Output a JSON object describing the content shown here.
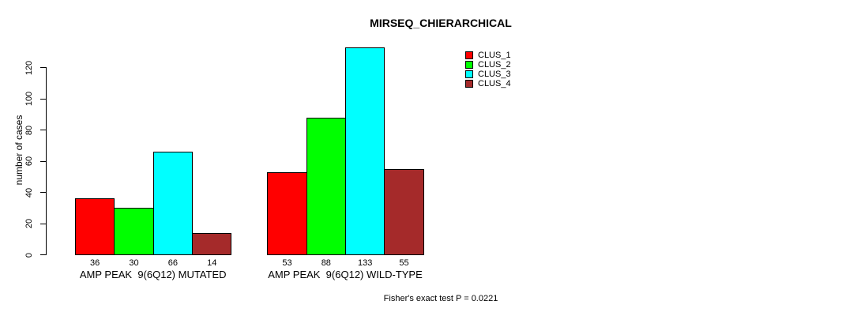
{
  "chart_data": {
    "type": "bar",
    "title": "MIRSEQ_CHIERARCHICAL",
    "ylabel": "number of cases",
    "xlabel": "",
    "categories": [
      "AMP PEAK  9(6Q12) MUTATED",
      "AMP PEAK  9(6Q12) WILD-TYPE"
    ],
    "series": [
      {
        "name": "CLUS_1",
        "color": "#ff0000",
        "values": [
          36,
          53
        ]
      },
      {
        "name": "CLUS_2",
        "color": "#00ff00",
        "values": [
          30,
          88
        ]
      },
      {
        "name": "CLUS_3",
        "color": "#00ffff",
        "values": [
          66,
          133
        ]
      },
      {
        "name": "CLUS_4",
        "color": "#a52a2a",
        "values": [
          14,
          55
        ]
      }
    ],
    "show_bar_values": true,
    "yticks": [
      0,
      20,
      40,
      60,
      80,
      100,
      120
    ],
    "ylim": [
      0,
      136
    ],
    "grid": false,
    "legend_position": "top-right",
    "legend_entries": [
      "CLUS_1",
      "CLUS_2",
      "CLUS_3",
      "CLUS_4"
    ],
    "annotation": "Fisher's exact test P = 0.0221",
    "colors": {
      "background": "#ffffff",
      "axis": "#000000",
      "text": "#000000"
    }
  }
}
